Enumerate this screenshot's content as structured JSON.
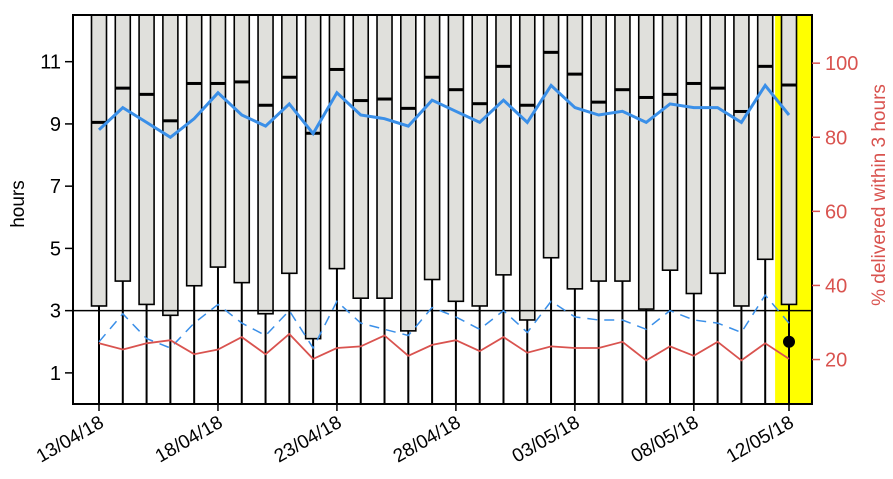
{
  "chart_data": {
    "type": "boxplot",
    "left_axis": {
      "label": "hours",
      "ticks": [
        1,
        3,
        5,
        7,
        9,
        11
      ],
      "range": [
        0,
        12.5
      ]
    },
    "right_axis": {
      "label": "% delivered within 3 hours",
      "ticks": [
        20,
        40,
        60,
        80,
        100
      ],
      "range": [
        8,
        113
      ]
    },
    "x_tick_labels": [
      "13/04/18",
      "18/04/18",
      "23/04/18",
      "28/04/18",
      "03/05/18",
      "08/05/18",
      "12/05/18"
    ],
    "x_tick_indices": [
      0,
      5,
      10,
      15,
      20,
      25,
      29
    ],
    "reference_line_hours": 3,
    "highlight_index": 29,
    "highlight_color": "#ffff00",
    "box_color": "#e0e0dc",
    "colors": {
      "line_pct": "#3a8fe8",
      "line_dashed": "#3a8fe8",
      "line_red": "#d9534f",
      "right_axis": "#d9534f"
    },
    "boxes": [
      {
        "q1": 3.15,
        "median": 9.05,
        "q3": 12.6
      },
      {
        "q1": 3.95,
        "median": 10.15,
        "q3": 12.6
      },
      {
        "q1": 3.2,
        "median": 9.95,
        "q3": 12.6
      },
      {
        "q1": 2.85,
        "median": 9.1,
        "q3": 12.6
      },
      {
        "q1": 3.8,
        "median": 10.3,
        "q3": 12.6
      },
      {
        "q1": 4.4,
        "median": 10.3,
        "q3": 12.6
      },
      {
        "q1": 3.9,
        "median": 10.35,
        "q3": 12.6
      },
      {
        "q1": 2.9,
        "median": 9.6,
        "q3": 12.6
      },
      {
        "q1": 4.2,
        "median": 10.5,
        "q3": 12.6
      },
      {
        "q1": 2.1,
        "median": 8.7,
        "q3": 12.6
      },
      {
        "q1": 4.35,
        "median": 10.75,
        "q3": 12.6
      },
      {
        "q1": 3.4,
        "median": 9.75,
        "q3": 12.6
      },
      {
        "q1": 3.4,
        "median": 9.8,
        "q3": 12.6
      },
      {
        "q1": 2.35,
        "median": 9.5,
        "q3": 12.6
      },
      {
        "q1": 4.0,
        "median": 10.5,
        "q3": 12.6
      },
      {
        "q1": 3.3,
        "median": 10.1,
        "q3": 12.6
      },
      {
        "q1": 3.15,
        "median": 9.65,
        "q3": 12.6
      },
      {
        "q1": 4.15,
        "median": 10.85,
        "q3": 12.6
      },
      {
        "q1": 2.7,
        "median": 9.6,
        "q3": 12.6
      },
      {
        "q1": 4.7,
        "median": 11.3,
        "q3": 12.6
      },
      {
        "q1": 3.7,
        "median": 10.6,
        "q3": 12.6
      },
      {
        "q1": 3.95,
        "median": 9.7,
        "q3": 12.6
      },
      {
        "q1": 3.95,
        "median": 10.1,
        "q3": 12.6
      },
      {
        "q1": 3.05,
        "median": 9.85,
        "q3": 12.6
      },
      {
        "q1": 4.3,
        "median": 9.95,
        "q3": 12.6
      },
      {
        "q1": 3.55,
        "median": 10.3,
        "q3": 12.6
      },
      {
        "q1": 4.2,
        "median": 10.15,
        "q3": 12.6
      },
      {
        "q1": 3.15,
        "median": 9.4,
        "q3": 12.6
      },
      {
        "q1": 4.65,
        "median": 10.85,
        "q3": 12.6
      },
      {
        "q1": 3.2,
        "median": 10.25,
        "q3": 12.6
      }
    ],
    "series": [
      {
        "values": [
          82,
          88,
          84,
          80,
          85,
          92,
          86,
          83,
          89,
          81,
          92,
          86,
          85,
          83,
          90,
          87,
          84,
          90,
          84,
          94,
          88,
          86,
          87,
          84,
          89,
          88,
          88,
          84,
          94,
          86
        ]
      },
      {
        "values": [
          2.0,
          2.9,
          2.1,
          1.8,
          2.6,
          3.2,
          2.6,
          2.2,
          3.0,
          1.8,
          3.3,
          2.6,
          2.4,
          2.2,
          3.1,
          2.8,
          2.4,
          3.0,
          2.3,
          3.3,
          2.8,
          2.7,
          2.7,
          2.4,
          3.0,
          2.7,
          2.6,
          2.3,
          3.5,
          2.6
        ]
      },
      {
        "values": [
          1.95,
          1.75,
          1.95,
          2.05,
          1.6,
          1.75,
          2.15,
          1.6,
          2.25,
          1.45,
          1.8,
          1.85,
          2.2,
          1.55,
          1.9,
          2.05,
          1.7,
          2.15,
          1.65,
          1.85,
          1.8,
          1.8,
          2.0,
          1.4,
          1.85,
          1.55,
          2.0,
          1.4,
          1.95,
          1.45
        ]
      }
    ],
    "highlight_point_hours": 2.0
  }
}
